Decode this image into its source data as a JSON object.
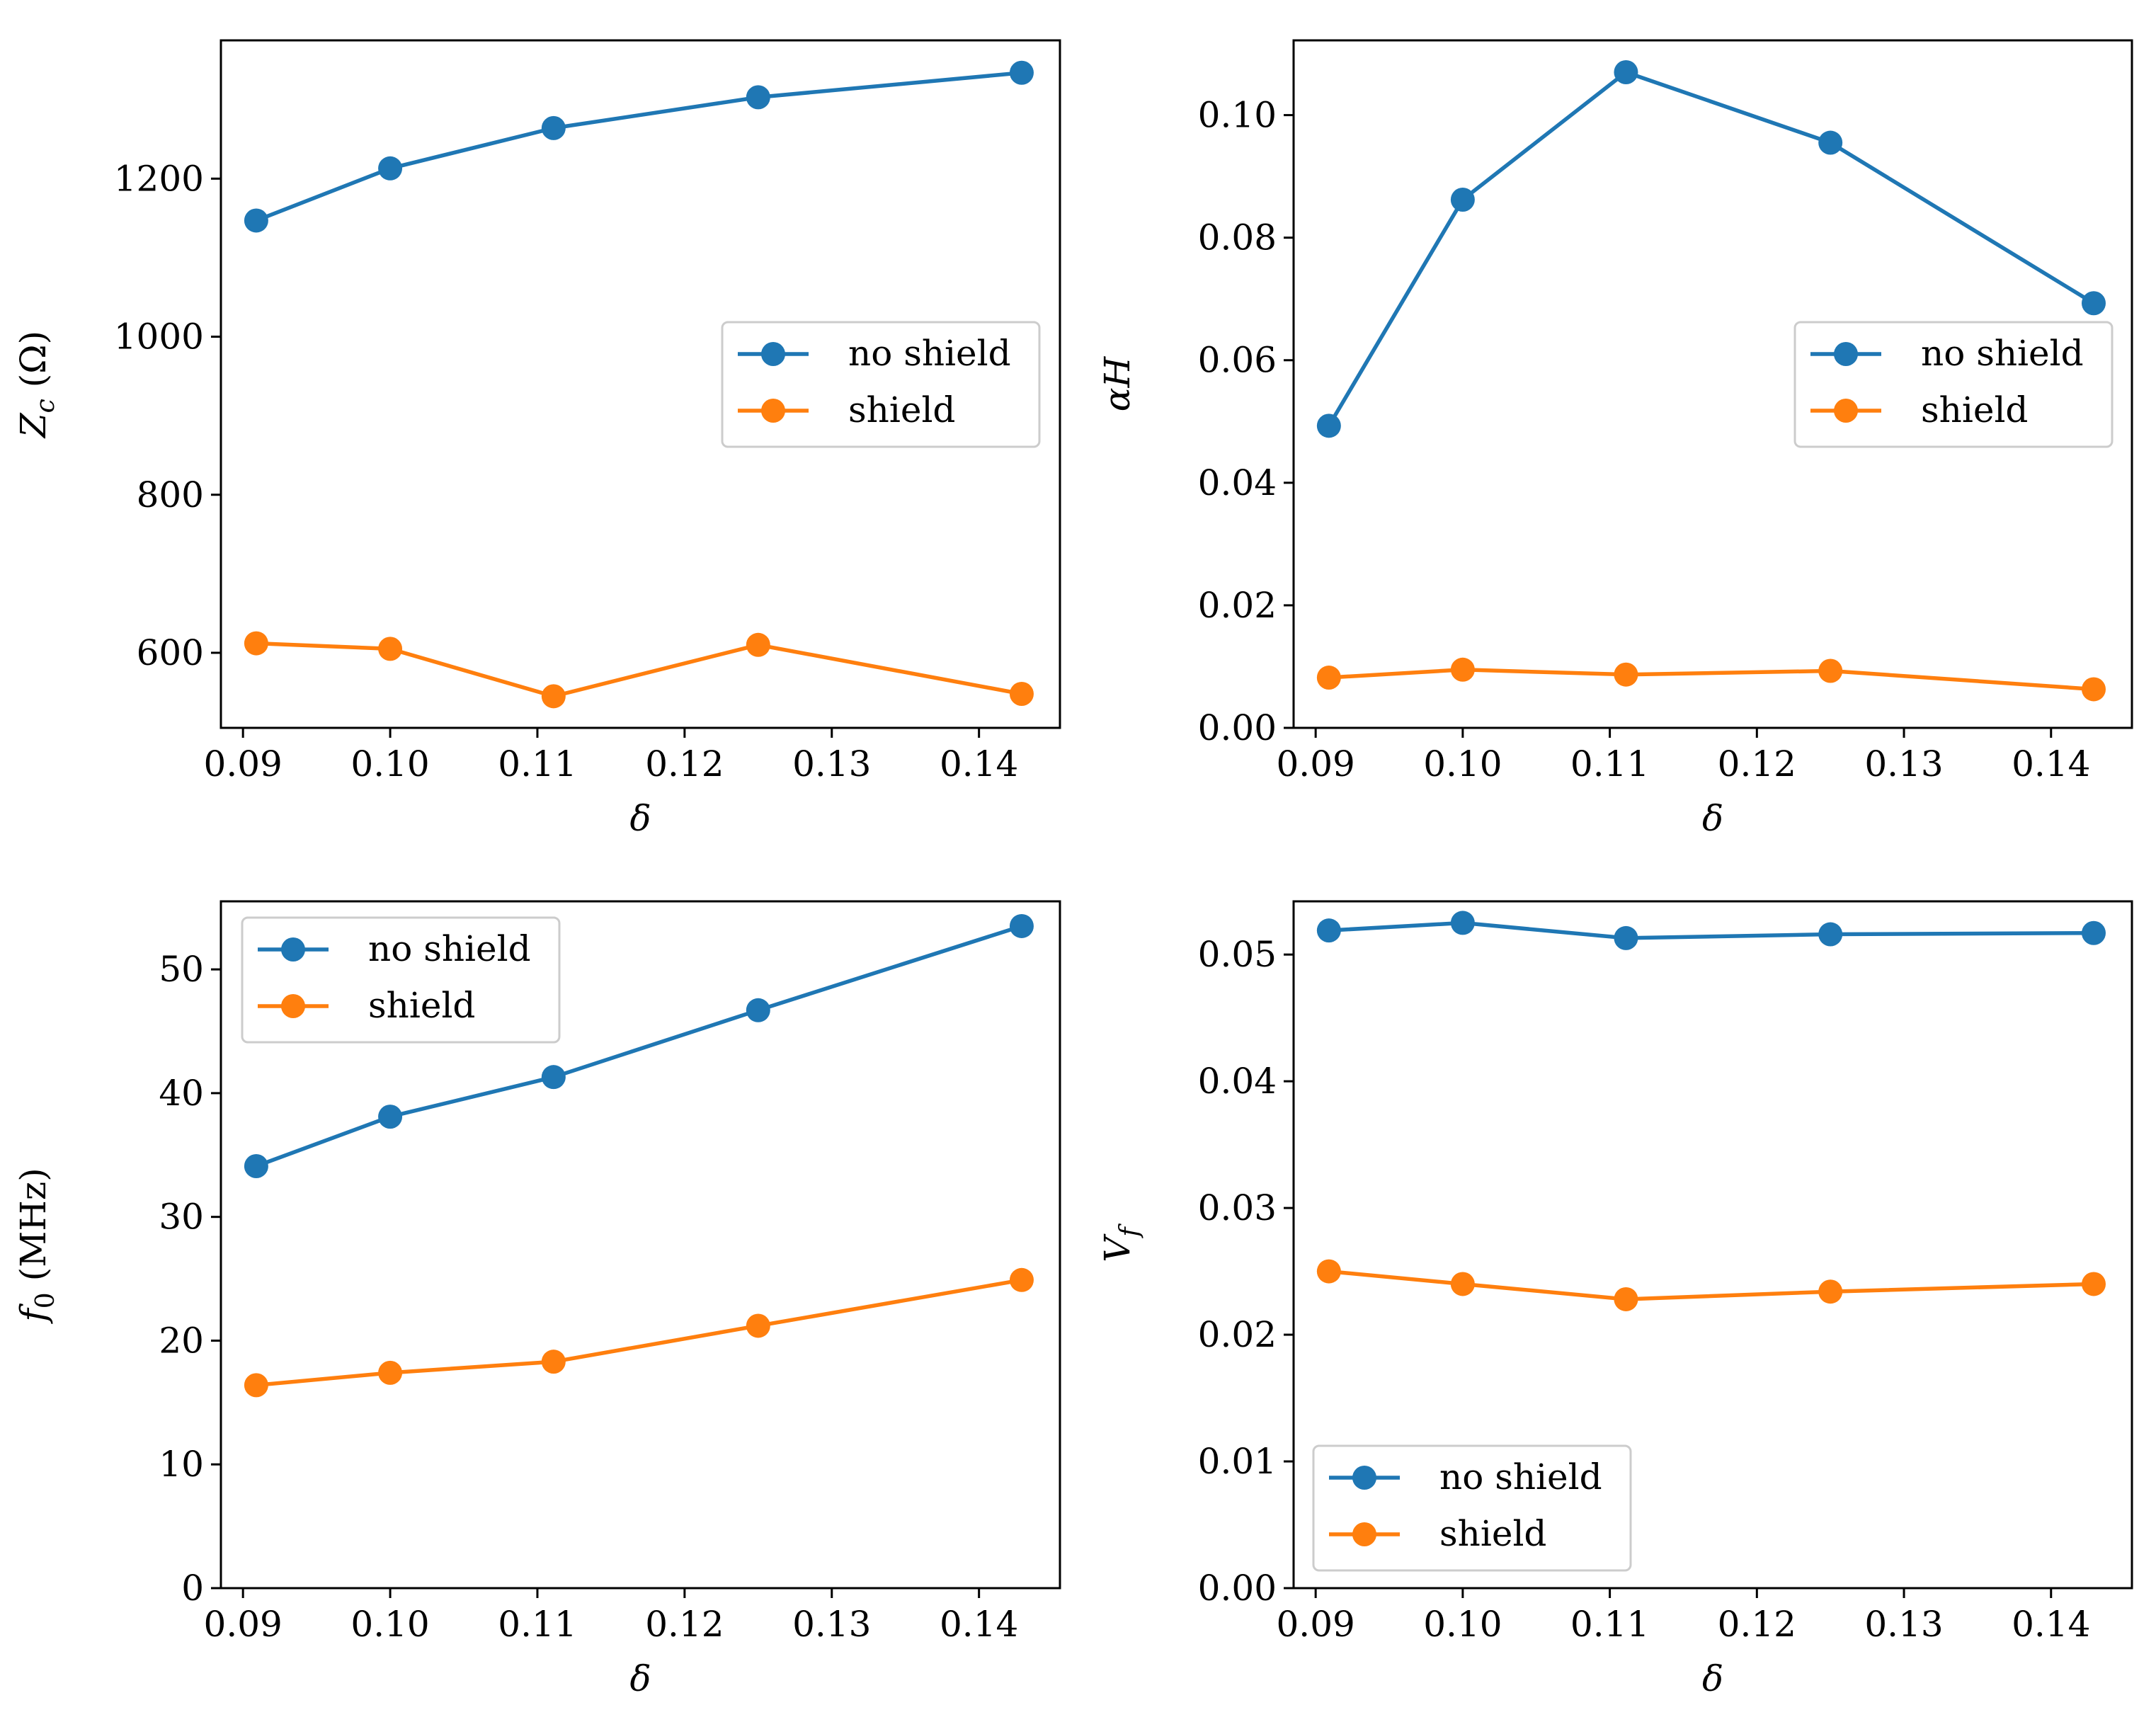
{
  "figure_title": "",
  "colors": {
    "no_shield": "#1f77b4",
    "shield": "#ff7f0e"
  },
  "chart_data": [
    {
      "type": "line",
      "title": "",
      "xlabel": "δ",
      "ylabel": "Z_c (Ω)",
      "ylabel_main": "Z",
      "ylabel_sub": "c",
      "ylabel_rest": " (Ω)",
      "xlim": [
        0.0885,
        0.1455
      ],
      "ylim": [
        505,
        1375
      ],
      "xticks": [
        0.09,
        0.1,
        0.11,
        0.12,
        0.13,
        0.14
      ],
      "xtick_labels": [
        "0.09",
        "0.10",
        "0.11",
        "0.12",
        "0.13",
        "0.14"
      ],
      "yticks": [
        600,
        800,
        1000,
        1200
      ],
      "ytick_labels": [
        "600",
        "800",
        "1000",
        "1200"
      ],
      "grid": false,
      "legend_position": "center-right",
      "x": [
        0.0909,
        0.1,
        0.1111,
        0.125,
        0.1429
      ],
      "series": [
        {
          "name": "no shield",
          "values": [
            1147,
            1213,
            1264,
            1303,
            1334
          ]
        },
        {
          "name": "shield",
          "values": [
            612,
            605,
            545,
            610,
            548
          ]
        }
      ]
    },
    {
      "type": "line",
      "title": "",
      "xlabel": "δ",
      "ylabel": "αH",
      "ylabel_main": "αH",
      "ylabel_sub": "",
      "ylabel_rest": "",
      "xlim": [
        0.0885,
        0.1455
      ],
      "ylim": [
        0,
        0.1122
      ],
      "xticks": [
        0.09,
        0.1,
        0.11,
        0.12,
        0.13,
        0.14
      ],
      "xtick_labels": [
        "0.09",
        "0.10",
        "0.11",
        "0.12",
        "0.13",
        "0.14"
      ],
      "yticks": [
        0,
        0.02,
        0.04,
        0.06,
        0.08,
        0.1
      ],
      "ytick_labels": [
        "0.00",
        "0.02",
        "0.04",
        "0.06",
        "0.08",
        "0.10"
      ],
      "grid": false,
      "legend_position": "center-right",
      "x": [
        0.0909,
        0.1,
        0.1111,
        0.125,
        0.1429
      ],
      "series": [
        {
          "name": "no shield",
          "values": [
            0.0493,
            0.0862,
            0.107,
            0.0955,
            0.0693
          ]
        },
        {
          "name": "shield",
          "values": [
            0.0082,
            0.0095,
            0.0087,
            0.0093,
            0.0063
          ]
        }
      ]
    },
    {
      "type": "line",
      "title": "",
      "xlabel": "δ",
      "ylabel": "f_0 (MHz)",
      "ylabel_main": "f",
      "ylabel_sub": "0",
      "ylabel_rest": " (MHz)",
      "xlim": [
        0.0885,
        0.1455
      ],
      "ylim": [
        0,
        55.5
      ],
      "xticks": [
        0.09,
        0.1,
        0.11,
        0.12,
        0.13,
        0.14
      ],
      "xtick_labels": [
        "0.09",
        "0.10",
        "0.11",
        "0.12",
        "0.13",
        "0.14"
      ],
      "yticks": [
        0,
        10,
        20,
        30,
        40,
        50
      ],
      "ytick_labels": [
        "0",
        "10",
        "20",
        "30",
        "40",
        "50"
      ],
      "grid": false,
      "legend_position": "upper-left",
      "x": [
        0.0909,
        0.1,
        0.1111,
        0.125,
        0.1429
      ],
      "series": [
        {
          "name": "no shield",
          "values": [
            34.1,
            38.1,
            41.3,
            46.7,
            53.5
          ]
        },
        {
          "name": "shield",
          "values": [
            16.4,
            17.4,
            18.3,
            21.2,
            24.9
          ]
        }
      ]
    },
    {
      "type": "line",
      "title": "",
      "xlabel": "δ",
      "ylabel": "V_f",
      "ylabel_main": "V",
      "ylabel_sub": "f",
      "ylabel_rest": "",
      "xlim": [
        0.0885,
        0.1455
      ],
      "ylim": [
        0,
        0.0542
      ],
      "xticks": [
        0.09,
        0.1,
        0.11,
        0.12,
        0.13,
        0.14
      ],
      "xtick_labels": [
        "0.09",
        "0.10",
        "0.11",
        "0.12",
        "0.13",
        "0.14"
      ],
      "yticks": [
        0,
        0.01,
        0.02,
        0.03,
        0.04,
        0.05
      ],
      "ytick_labels": [
        "0.00",
        "0.01",
        "0.02",
        "0.03",
        "0.04",
        "0.05"
      ],
      "grid": false,
      "legend_position": "lower-left",
      "x": [
        0.0909,
        0.1,
        0.1111,
        0.125,
        0.1429
      ],
      "series": [
        {
          "name": "no shield",
          "values": [
            0.0519,
            0.0525,
            0.0513,
            0.0516,
            0.0517
          ]
        },
        {
          "name": "shield",
          "values": [
            0.025,
            0.024,
            0.0228,
            0.0234,
            0.024
          ]
        }
      ]
    }
  ]
}
